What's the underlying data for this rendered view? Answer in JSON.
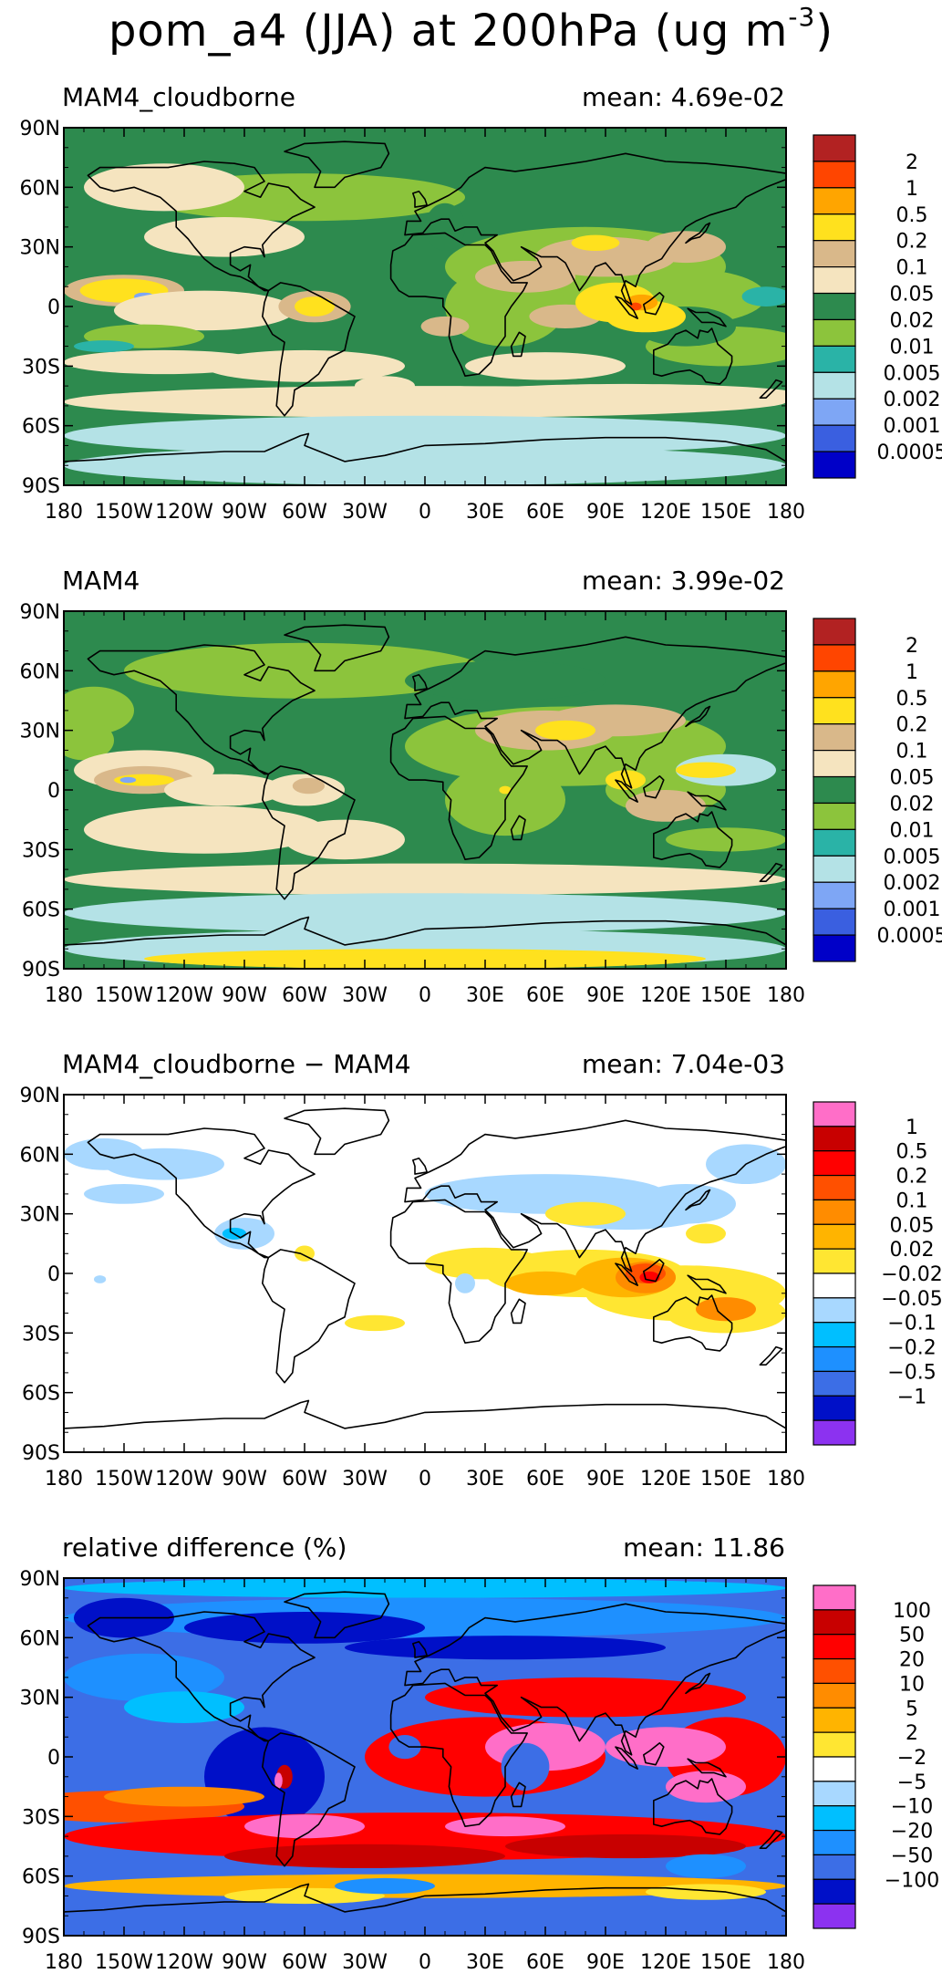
{
  "title": {
    "main": "pom_a4 (JJA) at 200hPa (ug m",
    "sup": "-3",
    "close": ")"
  },
  "axes": {
    "lat_labels": [
      "90N",
      "60N",
      "30N",
      "0",
      "30S",
      "60S",
      "90S"
    ],
    "lon_labels": [
      "180",
      "150W",
      "120W",
      "90W",
      "60W",
      "30W",
      "0",
      "30E",
      "60E",
      "90E",
      "120E",
      "150E",
      "180"
    ]
  },
  "palettes": {
    "abs": [
      "#0000c8",
      "#3a5fe0",
      "#7ea6f5",
      "#b4e2e6",
      "#2ab3a7",
      "#8cc43c",
      "#2d8a4e",
      "#f5e4bf",
      "#d9b88a",
      "#ffe11e",
      "#ffa500",
      "#ff4500",
      "#b22222"
    ],
    "diff": [
      "#8c32f0",
      "#0010c8",
      "#3c6ee6",
      "#1e90ff",
      "#00bfff",
      "#a8d8ff",
      "#ffffff",
      "#ffe632",
      "#ffb400",
      "#ff8c00",
      "#ff5000",
      "#ff0000",
      "#c80000",
      "#ff6ec8"
    ]
  },
  "panels": [
    {
      "id": "p1",
      "left_title": "MAM4_cloudborne",
      "right_title": "mean: 4.69e-02",
      "levels": [
        "2",
        "1",
        "0.5",
        "0.2",
        "0.1",
        "0.05",
        "0.02",
        "0.01",
        "0.005",
        "0.002",
        "0.001",
        "0.0005"
      ],
      "palette": "abs"
    },
    {
      "id": "p2",
      "left_title": "MAM4",
      "right_title": "mean: 3.99e-02",
      "levels": [
        "2",
        "1",
        "0.5",
        "0.2",
        "0.1",
        "0.05",
        "0.02",
        "0.01",
        "0.005",
        "0.002",
        "0.001",
        "0.0005"
      ],
      "palette": "abs"
    },
    {
      "id": "p3",
      "left_title": "MAM4_cloudborne − MAM4",
      "right_title": "mean: 7.04e-03",
      "levels": [
        "1",
        "0.5",
        "0.2",
        "0.1",
        "0.05",
        "0.02",
        "−0.02",
        "−0.05",
        "−0.1",
        "−0.2",
        "−0.5",
        "−1"
      ],
      "palette": "diff"
    },
    {
      "id": "p4",
      "left_title": "relative difference (%)",
      "right_title": "mean: 11.86",
      "levels": [
        "100",
        "50",
        "20",
        "10",
        "5",
        "2",
        "−2",
        "−5",
        "−10",
        "−20",
        "−50",
        "−100"
      ],
      "palette": "diff"
    }
  ]
}
